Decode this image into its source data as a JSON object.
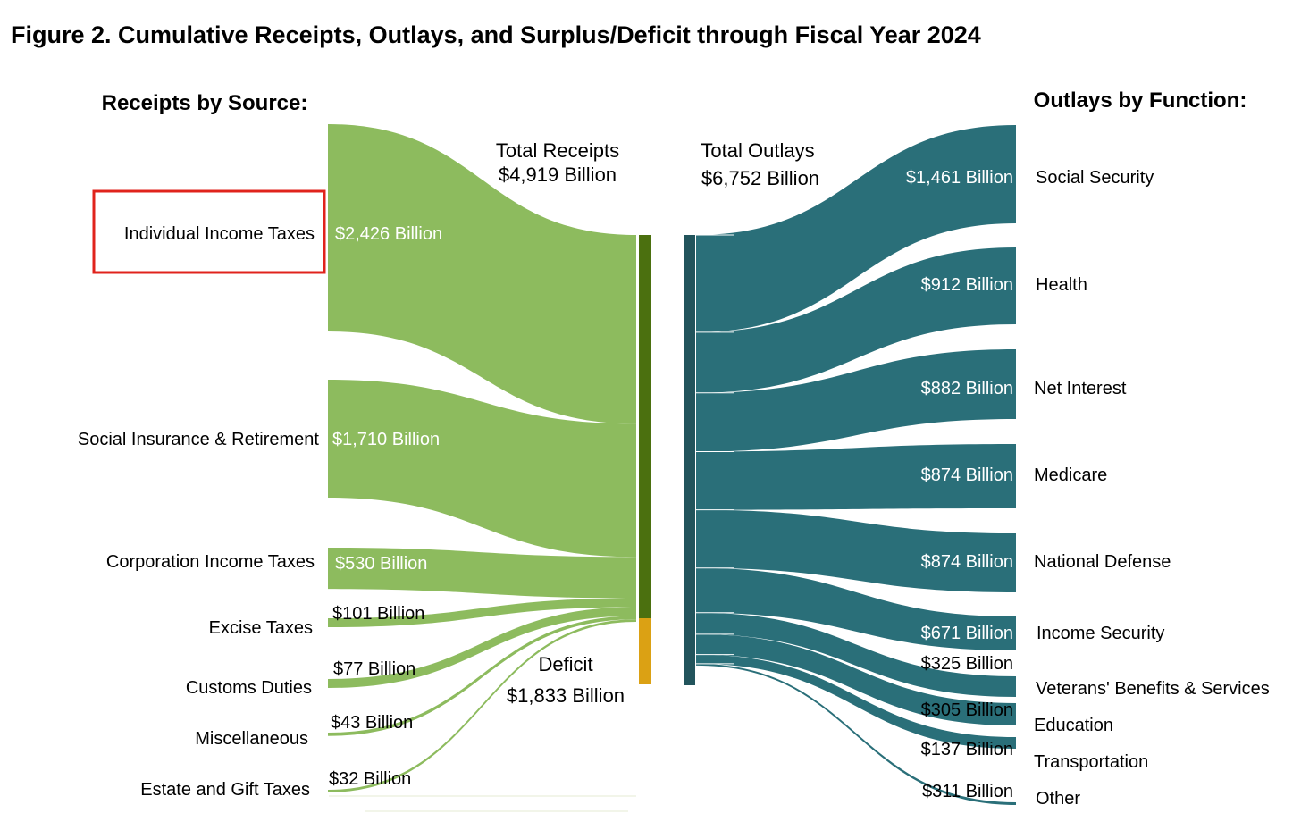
{
  "figure_title": "Figure 2. Cumulative Receipts, Outlays, and Surplus/Deficit through Fiscal Year 2024",
  "colors": {
    "receipts": "#8DBB5E",
    "receipts_bar": "#4B700F",
    "deficit": "#DBA114",
    "outlays": "#2A6F79",
    "outlays_bar": "#22545C",
    "highlight_box": "#E0231C"
  },
  "chart_data": {
    "type": "sankey",
    "units": "Billion",
    "receipts_heading": "Receipts by Source:",
    "outlays_heading": "Outlays by Function:",
    "total_receipts": {
      "label_line1": "Total Receipts",
      "label_line2": "$4,919 Billion",
      "value": 4919
    },
    "total_outlays": {
      "label_line1": "Total Outlays",
      "label_line2": "$6,752 Billion",
      "value": 6752
    },
    "deficit": {
      "label_line1": "Deficit",
      "label_line2": "$1,833 Billion",
      "value": 1833
    },
    "highlighted_source": "Individual Income Taxes",
    "receipts": [
      {
        "name": "Individual Income Taxes",
        "value": 2426,
        "value_label": "$2,426 Billion"
      },
      {
        "name": "Social Insurance & Retirement",
        "value": 1710,
        "value_label": "$1,710 Billion"
      },
      {
        "name": "Corporation Income Taxes",
        "value": 530,
        "value_label": "$530 Billion"
      },
      {
        "name": "Excise Taxes",
        "value": 101,
        "value_label": "$101 Billion"
      },
      {
        "name": "Customs Duties",
        "value": 77,
        "value_label": "$77 Billion"
      },
      {
        "name": "Miscellaneous",
        "value": 43,
        "value_label": "$43 Billion"
      },
      {
        "name": "Estate and Gift Taxes",
        "value": 32,
        "value_label": "$32 Billion"
      }
    ],
    "outlays": [
      {
        "name": "Social Security",
        "value": 1461,
        "value_label": "$1,461 Billion"
      },
      {
        "name": "Health",
        "value": 912,
        "value_label": "$912 Billion"
      },
      {
        "name": "Net Interest",
        "value": 882,
        "value_label": "$882 Billion"
      },
      {
        "name": "Medicare",
        "value": 874,
        "value_label": "$874 Billion"
      },
      {
        "name": "National Defense",
        "value": 874,
        "value_label": "$874 Billion"
      },
      {
        "name": "Income Security",
        "value": 671,
        "value_label": "$671 Billion"
      },
      {
        "name": "Veterans' Benefits & Services",
        "value": 325,
        "value_label": "$325 Billion"
      },
      {
        "name": "Education",
        "value": 305,
        "value_label": "$305 Billion"
      },
      {
        "name": "Transportation",
        "value": 137,
        "value_label": "$137 Billion"
      },
      {
        "name": "Other",
        "value": 311,
        "value_label": "$311 Billion"
      }
    ]
  }
}
